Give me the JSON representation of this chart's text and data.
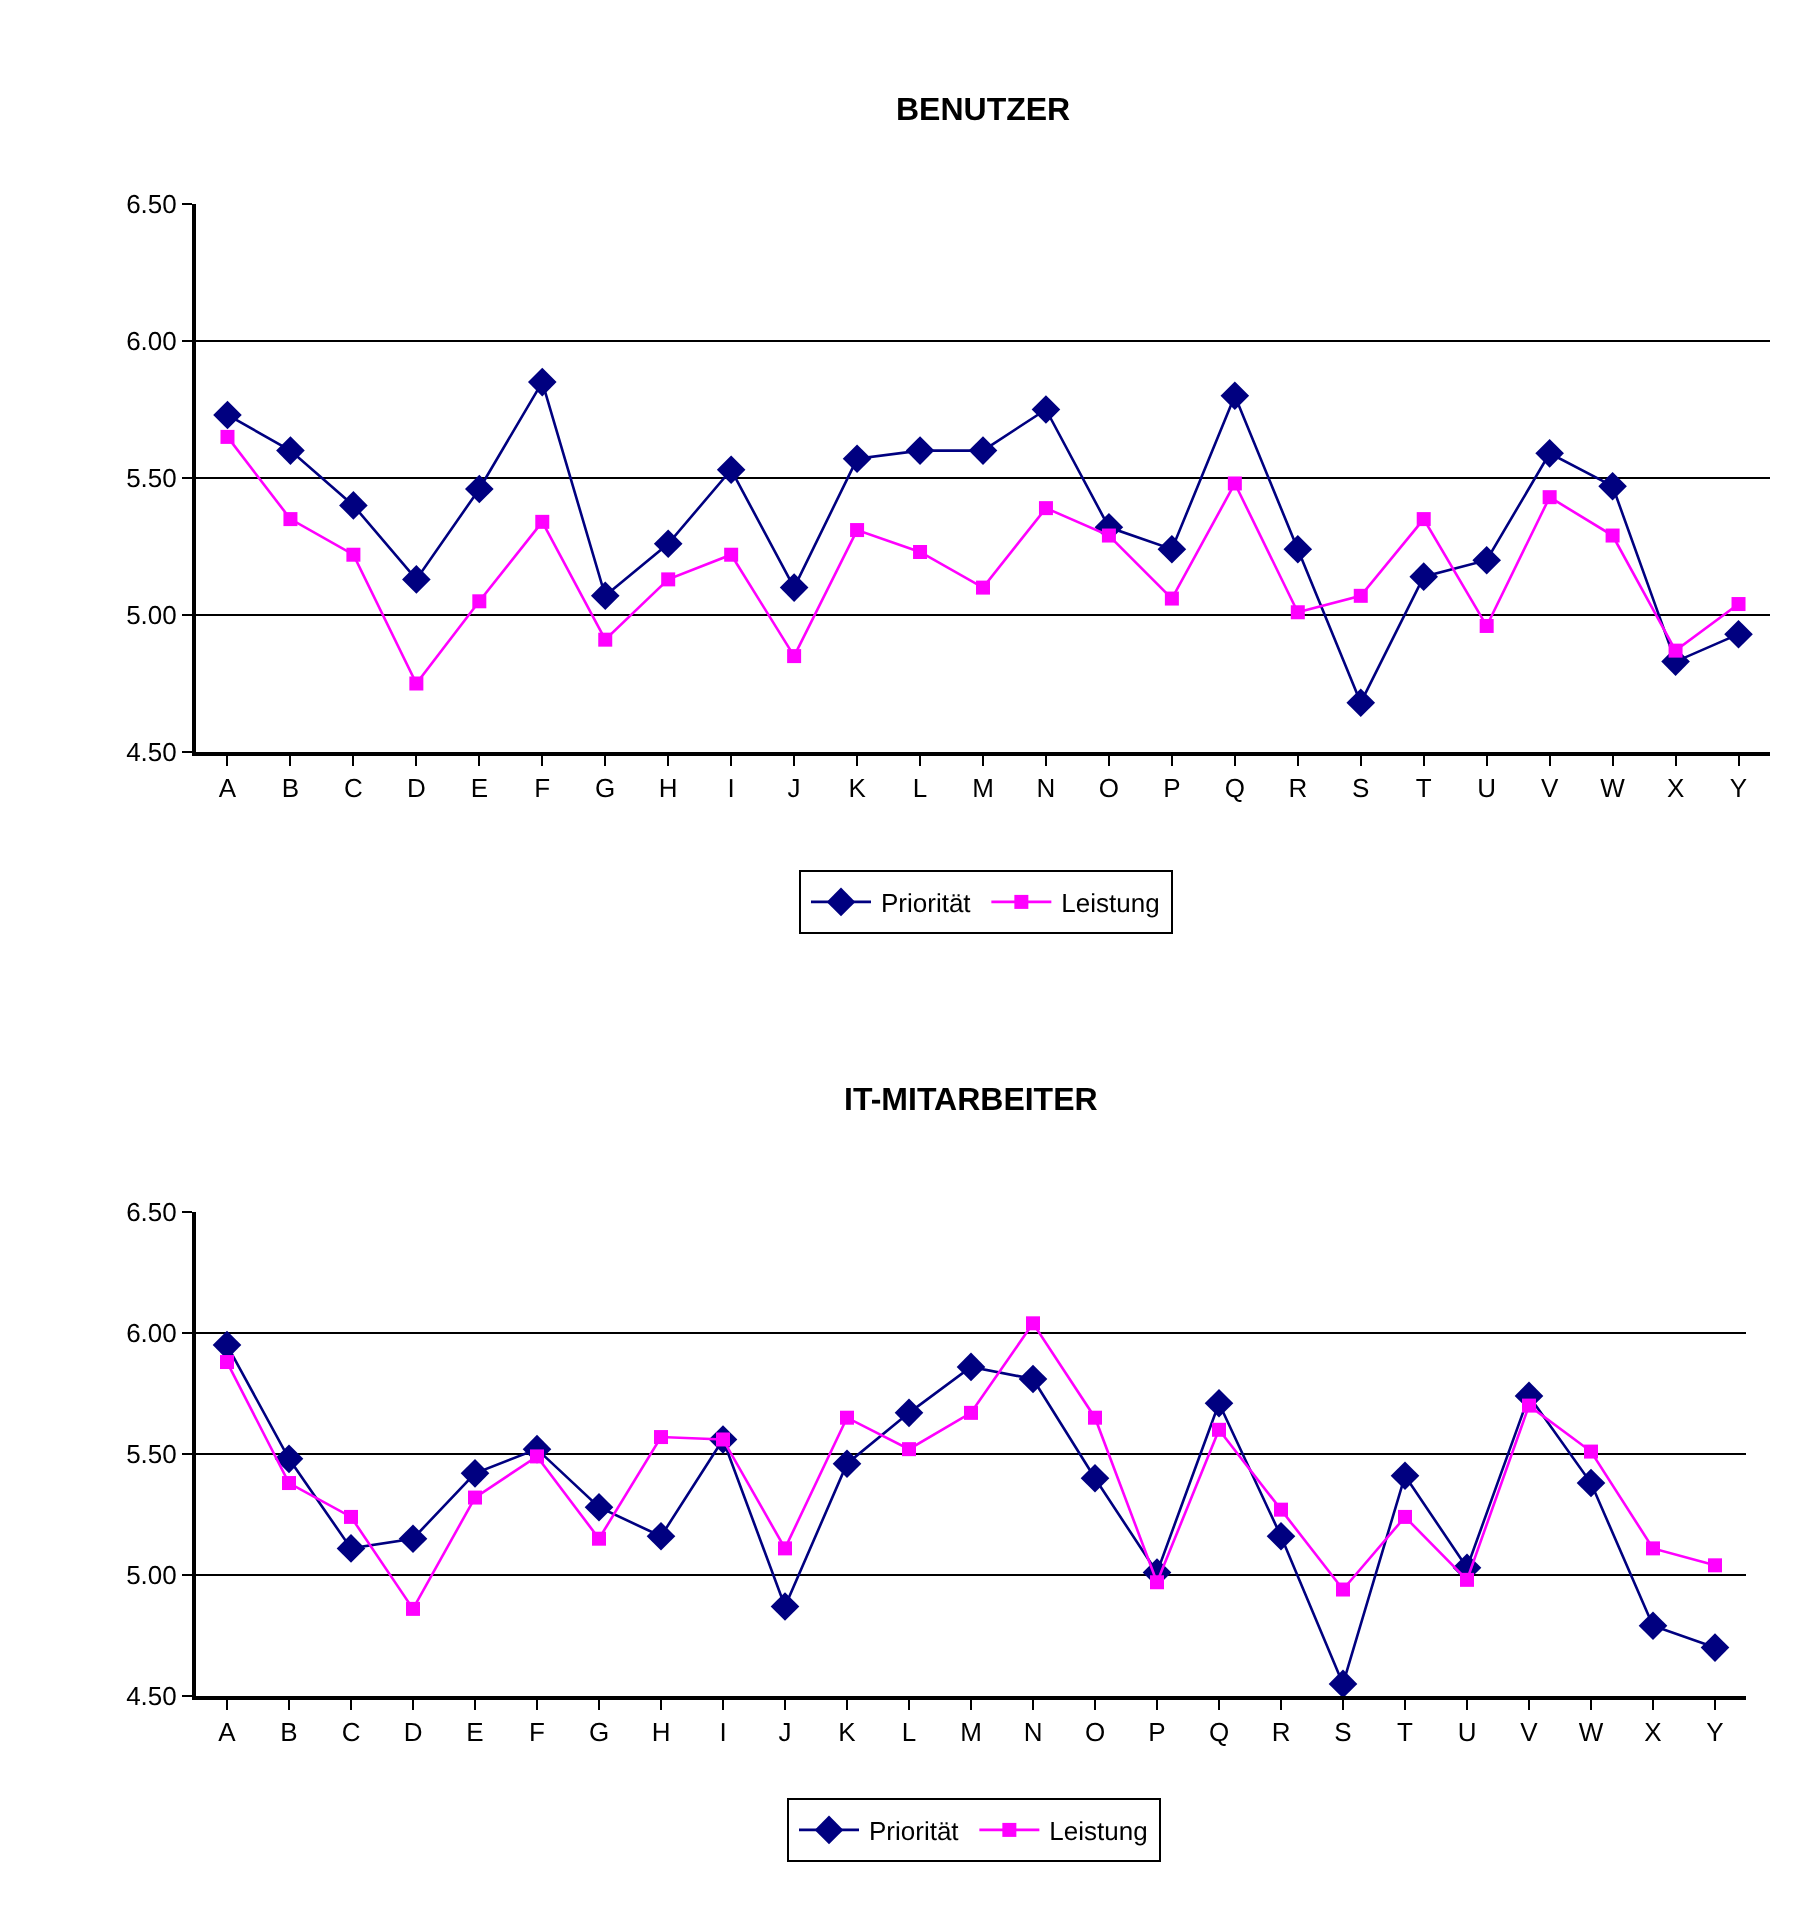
{
  "chart_data": [
    {
      "type": "line",
      "title": "BENUTZER",
      "categories": [
        "A",
        "B",
        "C",
        "D",
        "E",
        "F",
        "G",
        "H",
        "I",
        "J",
        "K",
        "L",
        "M",
        "N",
        "O",
        "P",
        "Q",
        "R",
        "S",
        "T",
        "U",
        "V",
        "W",
        "X",
        "Y"
      ],
      "series": [
        {
          "name": "Priorität",
          "color": "#000080",
          "marker": "diamond",
          "values": [
            5.73,
            5.6,
            5.4,
            5.13,
            5.46,
            5.85,
            5.07,
            5.26,
            5.53,
            5.1,
            5.57,
            5.6,
            5.6,
            5.75,
            5.32,
            5.24,
            5.8,
            5.24,
            4.68,
            5.14,
            5.2,
            5.59,
            5.47,
            4.83,
            4.93
          ]
        },
        {
          "name": "Leistung",
          "color": "#ff00ff",
          "marker": "square",
          "values": [
            5.65,
            5.35,
            5.22,
            4.75,
            5.05,
            5.34,
            4.91,
            5.13,
            5.22,
            4.85,
            5.31,
            5.23,
            5.1,
            5.39,
            5.29,
            5.06,
            5.48,
            5.01,
            5.07,
            5.35,
            4.96,
            5.43,
            5.29,
            4.87,
            5.04
          ]
        }
      ],
      "ylim": [
        4.5,
        6.5
      ],
      "yticks": [
        {
          "value": 4.5,
          "label": "4.50"
        },
        {
          "value": 5,
          "label": "5.00"
        },
        {
          "value": 5.5,
          "label": "5.50"
        },
        {
          "value": 6,
          "label": "6.00"
        },
        {
          "value": 6.5,
          "label": "6.50"
        }
      ],
      "grid": "y",
      "legend": "bottom",
      "line_style": "solid"
    },
    {
      "type": "line",
      "title": "IT-MITARBEITER",
      "categories": [
        "A",
        "B",
        "C",
        "D",
        "E",
        "F",
        "G",
        "H",
        "I",
        "J",
        "K",
        "L",
        "M",
        "N",
        "O",
        "P",
        "Q",
        "R",
        "S",
        "T",
        "U",
        "V",
        "W",
        "X",
        "Y"
      ],
      "series": [
        {
          "name": "Priorität",
          "color": "#000080",
          "marker": "diamond",
          "values": [
            5.95,
            5.48,
            5.11,
            5.15,
            5.42,
            5.52,
            5.28,
            5.16,
            5.56,
            4.87,
            5.46,
            5.67,
            5.86,
            5.81,
            5.4,
            5.01,
            5.71,
            5.16,
            4.55,
            5.41,
            5.03,
            5.74,
            5.38,
            4.79,
            4.7
          ]
        },
        {
          "name": "Leistung",
          "color": "#ff00ff",
          "marker": "square",
          "values": [
            5.88,
            5.38,
            5.24,
            4.86,
            5.32,
            5.49,
            5.15,
            5.57,
            5.56,
            5.11,
            5.65,
            5.52,
            5.67,
            6.04,
            5.65,
            4.97,
            5.6,
            5.27,
            4.94,
            5.24,
            4.98,
            5.7,
            5.51,
            5.11,
            5.04
          ]
        }
      ],
      "ylim": [
        4.5,
        6.5
      ],
      "yticks": [
        {
          "value": 4.5,
          "label": "4.50"
        },
        {
          "value": 5,
          "label": "5.00"
        },
        {
          "value": 5.5,
          "label": "5.50"
        },
        {
          "value": 6,
          "label": "6.00"
        },
        {
          "value": 6.5,
          "label": "6.50"
        }
      ],
      "grid": "y",
      "legend": "bottom",
      "line_style": "solid"
    }
  ]
}
